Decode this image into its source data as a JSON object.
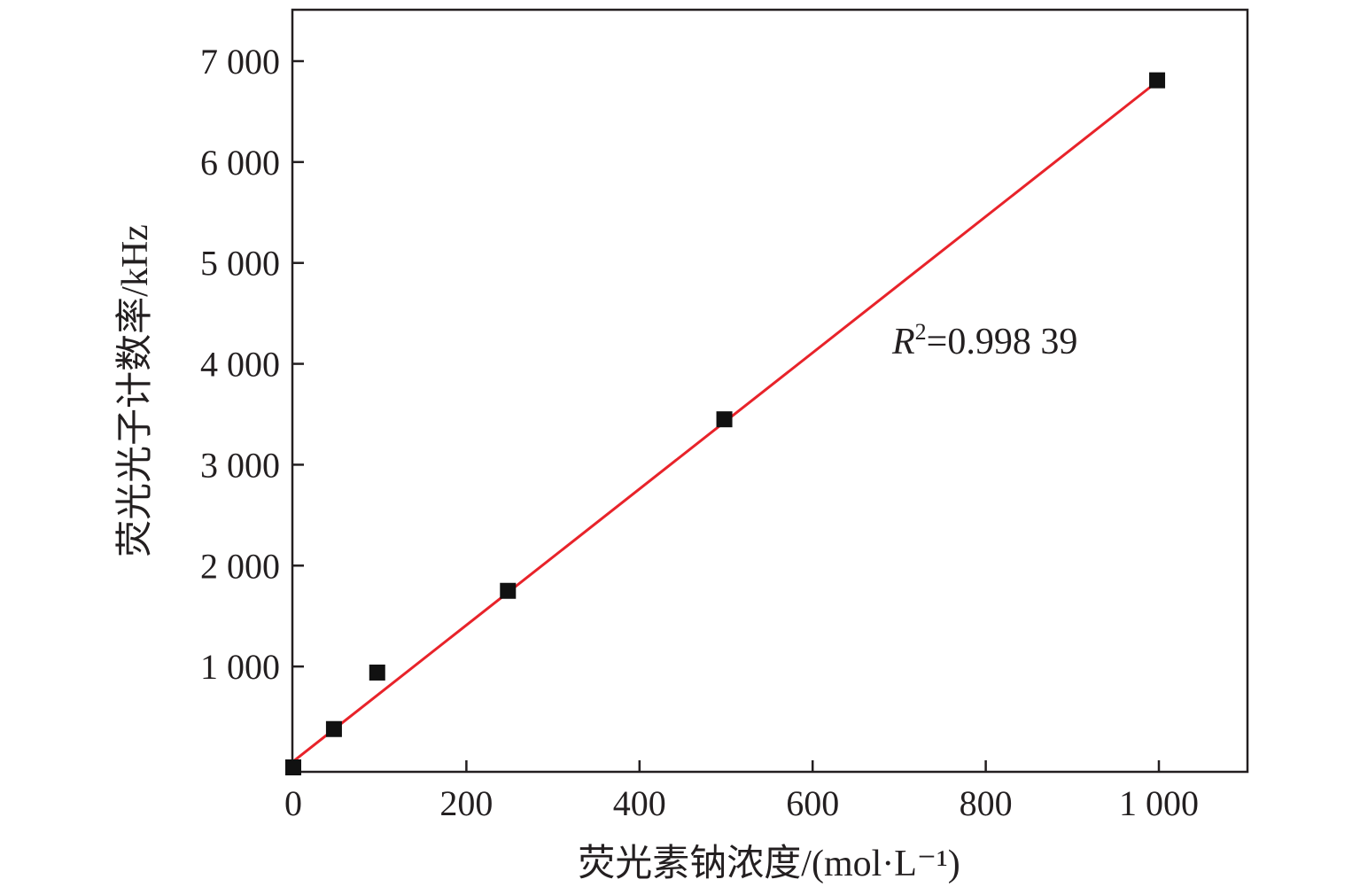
{
  "chart_data": {
    "type": "scatter",
    "title": "",
    "xlabel": "荧光素钠浓度/(mol·L⁻¹)",
    "ylabel": "荧光光子计数率/kHz",
    "xlim": [
      0,
      1100
    ],
    "ylim": [
      -100,
      7500
    ],
    "x_ticks": [
      0,
      200,
      400,
      600,
      800,
      1000
    ],
    "x_tick_labels": [
      "0",
      "200",
      "400",
      "600",
      "800",
      "1 000"
    ],
    "y_ticks": [
      1000,
      2000,
      3000,
      4000,
      5000,
      6000,
      7000
    ],
    "y_tick_labels": [
      "1 000",
      "2 000",
      "3 000",
      "4 000",
      "5 000",
      "6 000",
      "7 000"
    ],
    "grid": false,
    "series": [
      {
        "marker": "square",
        "color": "#111111",
        "points": [
          {
            "x": 0,
            "y": 0
          },
          {
            "x": 47,
            "y": 380
          },
          {
            "x": 97,
            "y": 940
          },
          {
            "x": 248,
            "y": 1750
          },
          {
            "x": 498,
            "y": 3450
          },
          {
            "x": 998,
            "y": 6810
          }
        ]
      }
    ],
    "fit_line": {
      "type": "linear",
      "color": "#e8232a",
      "x": [
        0,
        1000
      ],
      "y": [
        60,
        6810
      ]
    },
    "annotations": [
      {
        "text_italic": "R",
        "superscript": "2",
        "text": "=0.998 39"
      }
    ]
  }
}
